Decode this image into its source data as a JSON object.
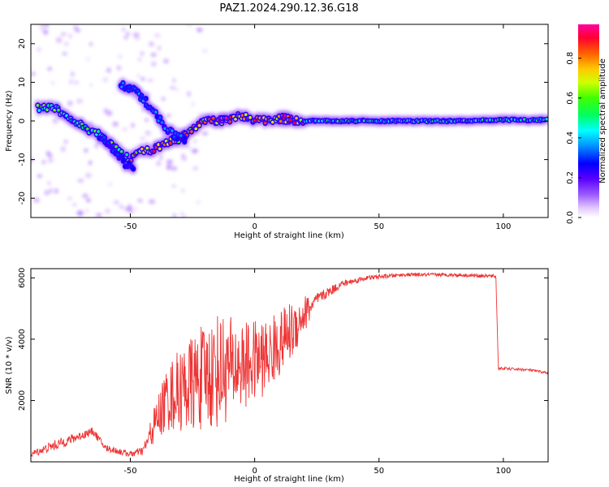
{
  "title": "PAZ1.2024.290.12.36.G18",
  "colors": {
    "snr_line": "#ee3333",
    "axis": "#000000",
    "background": "#ffffff"
  },
  "chart_data": [
    {
      "type": "heatmap",
      "xlabel": "Height of straight line (km)",
      "ylabel": "Frequency (Hz)",
      "xlim": [
        -90,
        118
      ],
      "ylim": [
        -25,
        25
      ],
      "x_ticks": [
        -50,
        0,
        50,
        100
      ],
      "y_ticks": [
        -20,
        -10,
        0,
        10,
        20
      ],
      "colorbar": {
        "label": "Normalized spectral amplitude",
        "range": [
          0,
          0.97
        ],
        "ticks": [
          0.0,
          0.2,
          0.4,
          0.6,
          0.8
        ]
      },
      "ridges": [
        {
          "name": "main",
          "points": [
            [
              -87,
              3.5
            ],
            [
              -84,
              3.5
            ],
            [
              -80,
              3
            ],
            [
              -76,
              1.5
            ],
            [
              -73,
              0.5
            ],
            [
              -70,
              -1
            ],
            [
              -67,
              -2
            ],
            [
              -63,
              -3.5
            ],
            [
              -60,
              -5
            ],
            [
              -57,
              -6
            ],
            [
              -55,
              -7.5
            ],
            [
              -52,
              -9
            ],
            [
              -50,
              -10
            ]
          ],
          "amplitude": 0.6
        },
        {
          "name": "main",
          "points": [
            [
              -50,
              -9.5
            ],
            [
              -46,
              -8
            ],
            [
              -42,
              -7.5
            ],
            [
              -38,
              -6.5
            ],
            [
              -34,
              -5.5
            ],
            [
              -30,
              -4.5
            ],
            [
              -27,
              -3
            ],
            [
              -24,
              -1.5
            ],
            [
              -21,
              -0.5
            ],
            [
              -18,
              0
            ],
            [
              -14,
              0
            ],
            [
              -10,
              0.5
            ],
            [
              -7,
              1.2
            ],
            [
              -4,
              1
            ],
            [
              -1,
              0.5
            ],
            [
              3,
              0
            ],
            [
              8,
              0.5
            ],
            [
              12,
              0.5
            ],
            [
              16,
              0
            ],
            [
              20,
              0
            ]
          ],
          "amplitude": 0.85
        },
        {
          "name": "main",
          "points": [
            [
              20,
              0
            ],
            [
              40,
              0
            ],
            [
              60,
              0
            ],
            [
              80,
              0
            ],
            [
              100,
              0.3
            ],
            [
              110,
              0.2
            ],
            [
              118,
              0.3
            ]
          ],
          "amplitude": 0.55
        },
        {
          "name": "branch",
          "points": [
            [
              -54,
              9.5
            ],
            [
              -50,
              8.5
            ],
            [
              -47,
              7
            ],
            [
              -44,
              5
            ],
            [
              -40,
              2
            ],
            [
              -37,
              -1
            ],
            [
              -34,
              -3
            ],
            [
              -31,
              -4
            ],
            [
              -27,
              -5
            ]
          ],
          "amplitude": 0.35
        },
        {
          "name": "branch",
          "points": [
            [
              -62,
              -4
            ],
            [
              -58,
              -7
            ],
            [
              -55,
              -9
            ],
            [
              -52,
              -11
            ],
            [
              -48,
              -13
            ]
          ],
          "amplitude": 0.3
        },
        {
          "name": "hotspot",
          "points": [
            [
              -14,
              0.2
            ],
            [
              -11,
              0.2
            ]
          ],
          "amplitude": 0.97
        },
        {
          "name": "hotspot",
          "points": [
            [
              10,
              0.6
            ],
            [
              15,
              0.6
            ]
          ],
          "amplitude": 0.95
        }
      ]
    },
    {
      "type": "line",
      "xlabel": "Height of straight line (km)",
      "ylabel": "SNR (10 * v/v)",
      "xlim": [
        -90,
        118
      ],
      "ylim": [
        0,
        6300
      ],
      "x_ticks": [
        -50,
        0,
        50,
        100
      ],
      "y_ticks": [
        2000,
        4000,
        6000
      ],
      "envelope": [
        {
          "x": -90,
          "base": 250,
          "noise": 200
        },
        {
          "x": -80,
          "base": 550,
          "noise": 350
        },
        {
          "x": -70,
          "base": 850,
          "noise": 300
        },
        {
          "x": -65,
          "base": 1000,
          "noise": 250
        },
        {
          "x": -60,
          "base": 450,
          "noise": 250
        },
        {
          "x": -50,
          "base": 250,
          "noise": 200
        },
        {
          "x": -45,
          "base": 350,
          "noise": 300
        },
        {
          "x": -40,
          "base": 1200,
          "noise": 800
        },
        {
          "x": -35,
          "base": 2000,
          "noise": 1400
        },
        {
          "x": -25,
          "base": 2400,
          "noise": 2000
        },
        {
          "x": -15,
          "base": 2800,
          "noise": 2400
        },
        {
          "x": -5,
          "base": 3000,
          "noise": 1800
        },
        {
          "x": 5,
          "base": 3300,
          "noise": 1500
        },
        {
          "x": 15,
          "base": 4200,
          "noise": 1200
        },
        {
          "x": 25,
          "base": 5300,
          "noise": 400
        },
        {
          "x": 35,
          "base": 5800,
          "noise": 250
        },
        {
          "x": 45,
          "base": 6000,
          "noise": 150
        },
        {
          "x": 60,
          "base": 6100,
          "noise": 120
        },
        {
          "x": 80,
          "base": 6100,
          "noise": 120
        },
        {
          "x": 97,
          "base": 6050,
          "noise": 120
        },
        {
          "x": 98,
          "base": 3050,
          "noise": 100
        },
        {
          "x": 110,
          "base": 3000,
          "noise": 80
        },
        {
          "x": 118,
          "base": 2900,
          "noise": 80
        }
      ]
    }
  ]
}
